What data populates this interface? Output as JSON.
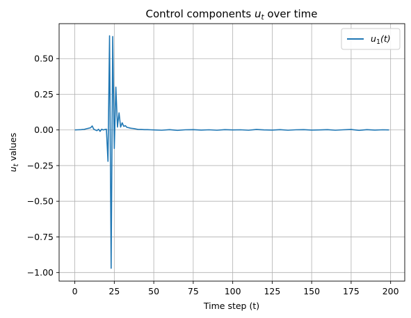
{
  "chart_data": {
    "type": "line",
    "title_prefix": "Control components ",
    "title_var": "u",
    "title_sub": "t",
    "title_suffix": " over time",
    "xlabel": "Time step (t)",
    "ylabel_var": "u",
    "ylabel_sub": "t",
    "ylabel_suffix": " values",
    "xlim": [
      -9.95,
      208.95
    ],
    "ylim": [
      -1.06,
      0.745
    ],
    "xticks": [
      0,
      25,
      50,
      75,
      100,
      125,
      150,
      175,
      200
    ],
    "yticks": [
      0.5,
      0.25,
      0.0,
      -0.25,
      -0.5,
      -0.75,
      -1.0
    ],
    "xtick_labels": [
      "0",
      "25",
      "50",
      "75",
      "100",
      "125",
      "150",
      "175",
      "200"
    ],
    "ytick_labels": [
      "0.50",
      "0.25",
      "0.00",
      "−0.25",
      "−0.50",
      "−0.75",
      "−1.00"
    ],
    "grid": true,
    "legend_position": "top-right",
    "series": [
      {
        "name_var": "u",
        "name_sub": "1",
        "name_suffix": "(t)",
        "color": "#1f77b4",
        "x": [
          0,
          2,
          4,
          6,
          8,
          10,
          11,
          12,
          13,
          14,
          15,
          16,
          17,
          18,
          19,
          20,
          21,
          22,
          23,
          24,
          25,
          26,
          27,
          28,
          29,
          30,
          31,
          32,
          33,
          34,
          35,
          36,
          37,
          38,
          39,
          40,
          42,
          44,
          46,
          48,
          50,
          55,
          60,
          65,
          70,
          75,
          80,
          85,
          90,
          95,
          100,
          105,
          110,
          115,
          120,
          125,
          130,
          135,
          140,
          145,
          150,
          155,
          160,
          165,
          170,
          175,
          180,
          185,
          190,
          195,
          199
        ],
        "y": [
          0.0,
          0.001,
          0.002,
          0.004,
          0.01,
          0.015,
          0.028,
          0.005,
          0.0,
          -0.005,
          0.005,
          -0.01,
          0.005,
          0.0,
          0.003,
          0.005,
          -0.22,
          0.66,
          -0.97,
          0.655,
          -0.13,
          0.3,
          0.02,
          0.12,
          0.02,
          0.05,
          0.025,
          0.03,
          0.018,
          0.016,
          0.013,
          0.011,
          0.01,
          0.008,
          0.006,
          0.004,
          0.003,
          0.002,
          0.002,
          0.001,
          0.0,
          -0.002,
          0.002,
          -0.003,
          0.001,
          0.002,
          -0.001,
          0.001,
          -0.002,
          0.002,
          0.0,
          0.001,
          -0.002,
          0.003,
          0.0,
          -0.001,
          0.002,
          -0.002,
          0.001,
          0.002,
          -0.001,
          0.0,
          0.002,
          -0.002,
          0.001,
          0.003,
          -0.003,
          0.002,
          -0.001,
          0.001,
          0.0
        ]
      }
    ]
  }
}
